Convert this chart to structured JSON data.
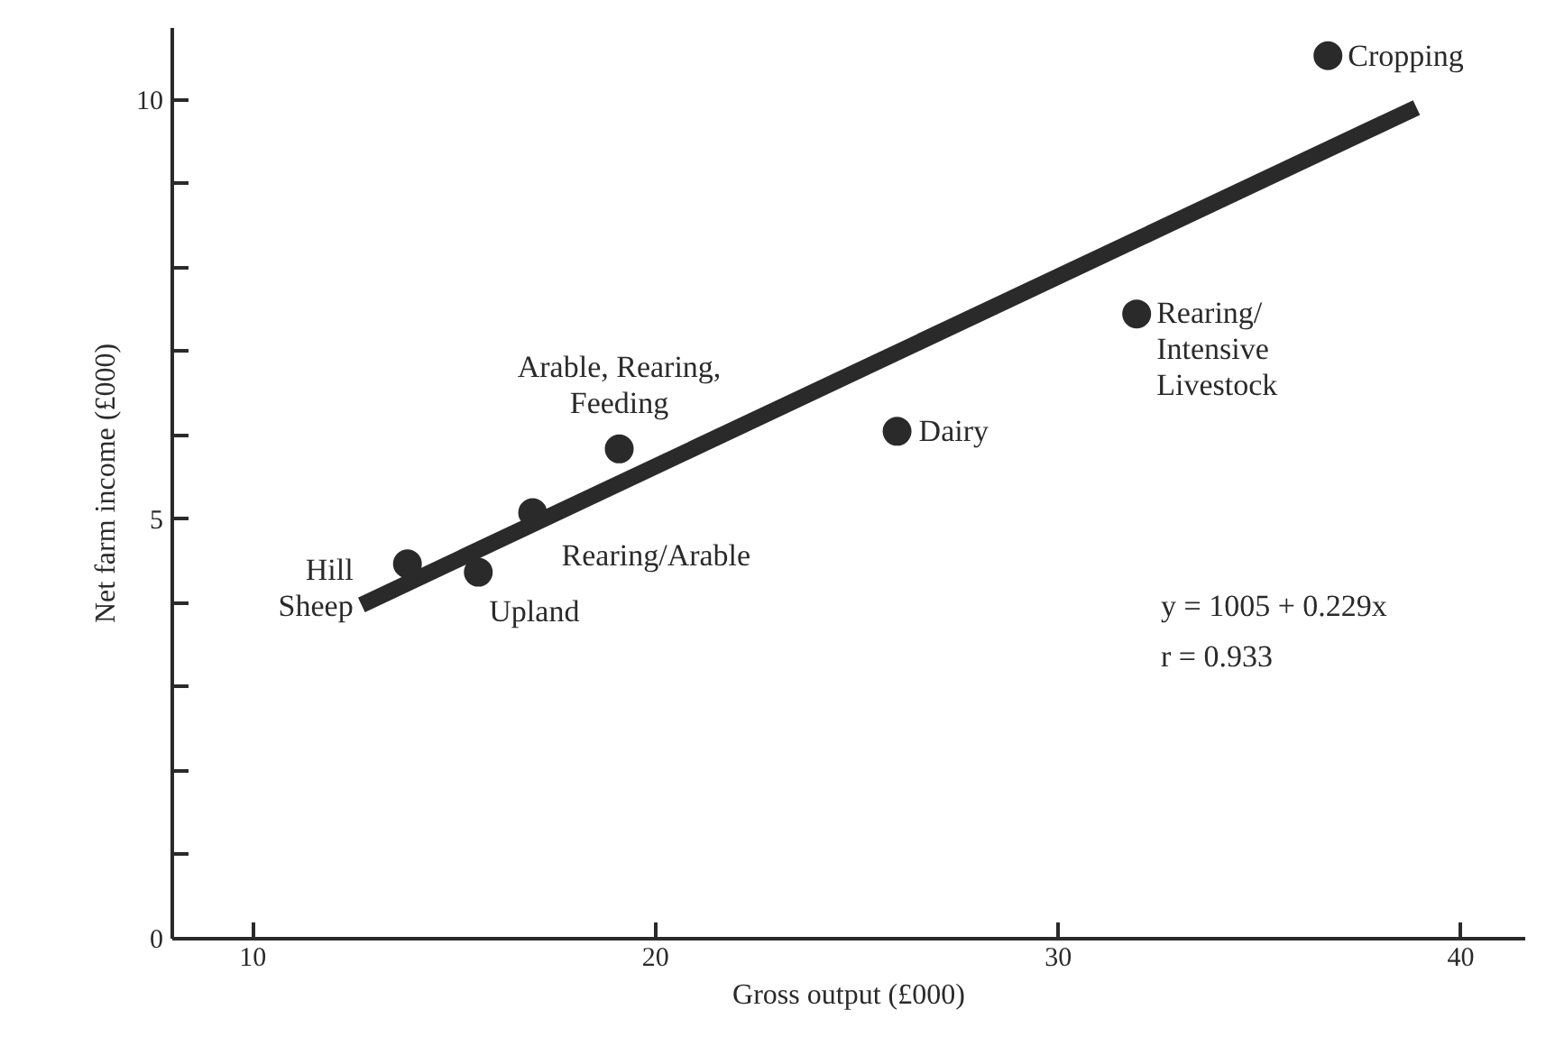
{
  "chart_data": {
    "type": "scatter",
    "xlabel": "Gross output (£000)",
    "ylabel": "Net farm income (£000)",
    "xlim": [
      8,
      41.6
    ],
    "ylim": [
      0,
      10.86
    ],
    "xticks": [
      10,
      20,
      30,
      40
    ],
    "yticks": [
      0,
      {
        "value": 1,
        "label": null
      },
      {
        "value": 2,
        "label": null
      },
      {
        "value": 3,
        "label": null
      },
      {
        "value": 4,
        "label": null
      },
      5,
      {
        "value": 6,
        "label": null
      },
      {
        "value": 7,
        "label": null
      },
      {
        "value": 8,
        "label": null
      },
      {
        "value": 9,
        "label": null
      },
      10
    ],
    "grid": false,
    "series": [
      {
        "marker": "circle",
        "color": "#2a2a2a",
        "x": [
          13.84,
          15.6,
          16.95,
          19.1,
          26.0,
          31.95,
          36.7
        ],
        "values": [
          4.47,
          4.37,
          5.08,
          5.84,
          6.05,
          7.45,
          10.53
        ]
      },
      {
        "type": "line",
        "color": "#2a2a2a",
        "x": [
          12.7,
          38.9
        ],
        "values": [
          3.98,
          9.91
        ],
        "line_style": "solid"
      }
    ],
    "annotations": [
      {
        "text": "Hill\nSheep",
        "x": 13.84,
        "y": 4.47
      },
      {
        "text": "Upland",
        "x": 15.6,
        "y": 4.37
      },
      {
        "text": "Rearing/Arable",
        "x": 16.95,
        "y": 5.08
      },
      {
        "text": "Arable, Rearing,\nFeeding",
        "x": 19.1,
        "y": 5.84
      },
      {
        "text": "Dairy",
        "x": 26.0,
        "y": 6.05
      },
      {
        "text": "Rearing/\nIntensive\nLivestock",
        "x": 31.95,
        "y": 7.45
      },
      {
        "text": "Cropping",
        "x": 36.7,
        "y": 10.53
      },
      "y = 1005 + 0.229x",
      "r = 0.933"
    ]
  }
}
